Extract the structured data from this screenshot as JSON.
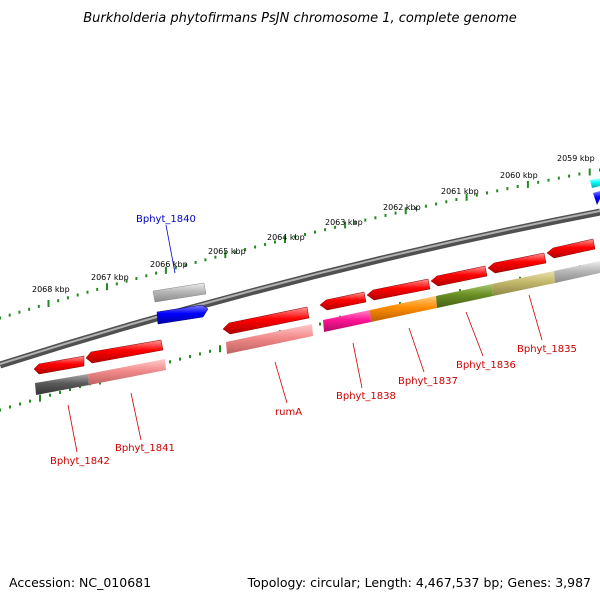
{
  "title": "Burkholderia phytofirmans PsJN chromosome 1, complete genome",
  "footer": {
    "accession": "Accession: NC_010681",
    "summary": "Topology: circular; Length: 4,467,537 bp; Genes: 3,987"
  },
  "kbp_labels": [
    "2059 kbp",
    "2060 kbp",
    "2061 kbp",
    "2062 kbp",
    "2063 kbp",
    "2064 kbp",
    "2065 kbp",
    "2066 kbp",
    "2067 kbp",
    "2068 kbp"
  ],
  "gene_labels": {
    "bphyt_1840": "Bphyt_1840",
    "bphyt_1842": "Bphyt_1842",
    "bphyt_1841": "Bphyt_1841",
    "ruma": "rumA",
    "bphyt_1838": "Bphyt_1838",
    "bphyt_1837": "Bphyt_1837",
    "bphyt_1836": "Bphyt_1836",
    "bphyt_1835": "Bphyt_1835"
  },
  "colors": {
    "backbone": "#808080",
    "ticks": "#228b22",
    "gene_red": "#ff0000",
    "label_red": "#cc0000",
    "label_blue": "#0000cc",
    "gene_blue": "#0000ff",
    "gene_cyan": "#00ffff",
    "cds_gray": "#b8b8b8",
    "cds_darkgray": "#5a5a5a",
    "cds_pink": "#f28b8b",
    "cds_magenta": "#ff1493",
    "cds_orange": "#ff8c00",
    "cds_olive": "#6b8e23",
    "cds_khaki": "#c2b86a"
  }
}
